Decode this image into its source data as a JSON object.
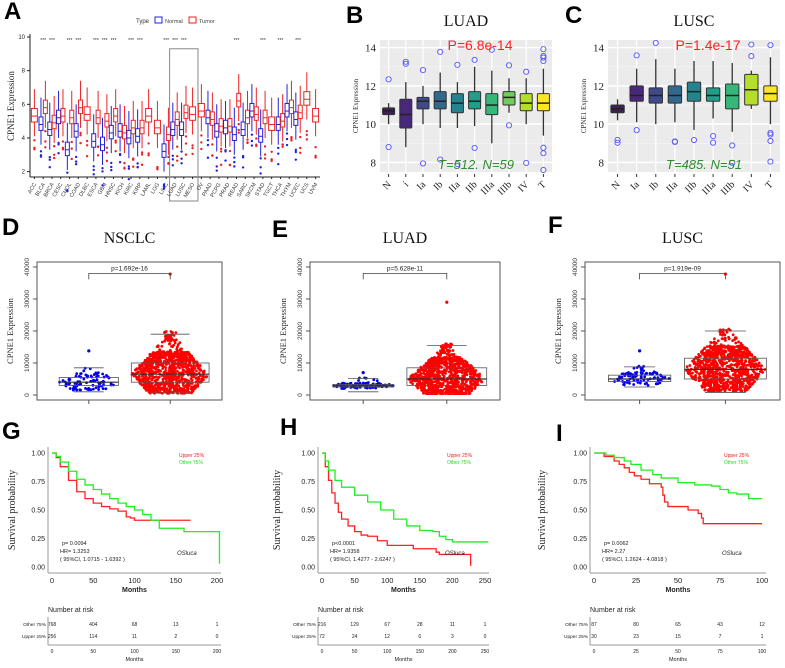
{
  "panel_labels": [
    "A",
    "B",
    "C",
    "D",
    "E",
    "F",
    "G",
    "H",
    "I"
  ],
  "chart_data": [
    {
      "id": "A",
      "type": "box",
      "title": "",
      "ylabel": "CPNE1 Expression",
      "ylim": [
        1.8,
        10
      ],
      "yticks": [
        2,
        4,
        6,
        8,
        10
      ],
      "legend": {
        "title": "Type",
        "entries": [
          {
            "name": "Normal",
            "color": "#2222dd"
          },
          {
            "name": "Tumor",
            "color": "#ee2222"
          }
        ],
        "placement": "top"
      },
      "highlight_box": [
        "LUAD",
        "LUSC",
        "MESO"
      ],
      "categories": [
        "ACC",
        "BLCA",
        "BRCA",
        "CESC",
        "CHOL",
        "COAD",
        "DLBC",
        "ESCA",
        "GBM",
        "HNSC",
        "KICH",
        "KIRC",
        "KIRP",
        "LAML",
        "LGG",
        "LIHC",
        "LUAD",
        "LUSC",
        "MESO",
        "OV",
        "PAAD",
        "PCPG",
        "PRAD",
        "READ",
        "SARC",
        "SKCM",
        "STAD",
        "TGCT",
        "THCA",
        "THYM",
        "UCEC",
        "UCS",
        "UVM"
      ],
      "significance": {
        "BLCA": "***",
        "BRCA": "***",
        "CHOL": "***",
        "COAD": "***",
        "ESCA": "***",
        "GBM": "***",
        "HNSC": "***",
        "KIRC": "***",
        "KIRP": "***",
        "LIHC": "***",
        "LUAD": "***",
        "LUSC": "***",
        "READ": "***",
        "STAD": "***",
        "THCA": "***",
        "UCEC": "***"
      },
      "normal_medians": {
        "BLCA": 4.8,
        "BRCA": 4.5,
        "CESC": 5.2,
        "CHOL": 3.3,
        "COAD": 4.4,
        "ESCA": 3.8,
        "GBM": 3.6,
        "HNSC": 4.3,
        "KICH": 4.4,
        "KIRC": 4.0,
        "KIRP": 4.1,
        "LIHC": 3.2,
        "LUAD": 4.5,
        "LUSC": 4.5,
        "PAAD": 5.2,
        "PCPG": 4.4,
        "PRAD": 4.6,
        "READ": 4.2,
        "SARC": 4.5,
        "SKCM": 5.6,
        "STAD": 4.1,
        "THCA": 4.8,
        "THYM": 5.6,
        "UCEC": 5.1
      },
      "tumor_medians": {
        "ACC": 5.3,
        "BLCA": 5.8,
        "BRCA": 4.9,
        "CESC": 5.3,
        "CHOL": 5.2,
        "COAD": 5.8,
        "DLBC": 5.4,
        "ESCA": 5.2,
        "GBM": 5.0,
        "HNSC": 5.3,
        "KICH": 4.3,
        "KIRC": 4.6,
        "KIRP": 4.6,
        "LAML": 5.3,
        "LGG": 4.6,
        "LIHC": 4.2,
        "LUAD": 5.1,
        "LUSC": 5.5,
        "MESO": 5.4,
        "OV": 5.6,
        "PAAD": 5.1,
        "PCPG": 4.7,
        "PRAD": 4.7,
        "READ": 6.2,
        "SARC": 5.2,
        "SKCM": 5.4,
        "STAD": 5.2,
        "TGCT": 4.8,
        "THCA": 5.0,
        "THYM": 5.8,
        "UCEC": 5.5,
        "UCS": 6.3,
        "UVM": 5.3
      }
    },
    {
      "id": "B",
      "type": "box",
      "title": "LUAD",
      "ylabel": "CPNE1 Expression",
      "ylim": [
        7.5,
        14.4
      ],
      "yticks": [
        8,
        10,
        12,
        14
      ],
      "categories": [
        "N",
        "i",
        "Ia",
        "Ib",
        "IIa",
        "IIb",
        "IIIa",
        "IIIb",
        "IV",
        "T"
      ],
      "medians": [
        10.7,
        10.5,
        11.2,
        11.2,
        11.1,
        11.2,
        11.0,
        11.4,
        11.1,
        11.1
      ],
      "q1": [
        10.5,
        9.8,
        10.8,
        10.8,
        10.6,
        10.8,
        10.5,
        11.0,
        10.7,
        10.7
      ],
      "q3": [
        10.85,
        11.3,
        11.4,
        11.7,
        11.6,
        11.7,
        11.6,
        11.7,
        11.6,
        11.6
      ],
      "whisker_low": [
        10.0,
        8.8,
        10.0,
        9.8,
        9.8,
        9.9,
        9.0,
        10.6,
        10.0,
        9.4
      ],
      "whisker_high": [
        11.1,
        12.2,
        12.0,
        12.7,
        12.2,
        13.0,
        12.8,
        12.4,
        12.4,
        12.9
      ],
      "colors": [
        "#3b1f55",
        "#482878",
        "#3e4a89",
        "#31688e",
        "#26828e",
        "#1f9e89",
        "#35b779",
        "#6ece58",
        "#b5de2b",
        "#fde725"
      ],
      "annotation_p": "P=6.8e-14",
      "annotation_n": "T=512. N=59"
    },
    {
      "id": "C",
      "type": "box",
      "title": "LUSC",
      "ylabel": "CPNE1 Expression",
      "ylim": [
        7.5,
        14.4
      ],
      "yticks": [
        8,
        10,
        12,
        14
      ],
      "categories": [
        "N",
        "Ia",
        "Ib",
        "IIa",
        "IIb",
        "IIIa",
        "IIIb",
        "IV",
        "T"
      ],
      "medians": [
        10.8,
        11.5,
        11.5,
        11.5,
        11.7,
        11.5,
        11.5,
        11.8,
        11.6
      ],
      "q1": [
        10.6,
        11.2,
        11.1,
        11.1,
        11.2,
        11.2,
        10.8,
        11.0,
        11.2
      ],
      "q3": [
        11.0,
        12.0,
        11.9,
        12.0,
        12.2,
        11.9,
        12.1,
        12.6,
        12.0
      ],
      "whisker_low": [
        10.2,
        10.1,
        10.0,
        10.1,
        9.7,
        10.3,
        9.6,
        10.8,
        10.0
      ],
      "whisker_high": [
        11.3,
        12.9,
        13.4,
        12.9,
        13.3,
        13.3,
        13.2,
        12.8,
        13.5
      ],
      "colors": [
        "#3b1f55",
        "#482878",
        "#3e4a89",
        "#31688e",
        "#26828e",
        "#1f9e89",
        "#35b779",
        "#b5de2b",
        "#fde725"
      ],
      "annotation_p": "P=1.4e-17",
      "annotation_n": "T=485. N=51"
    },
    {
      "id": "D",
      "type": "scatter",
      "title": "NSCLC",
      "ylabel": "CPNE1 Expression",
      "ylim": [
        0,
        40000
      ],
      "yticks": [
        0,
        10000,
        20000,
        30000,
        40000
      ],
      "categories": [
        "Normal",
        "Tumor"
      ],
      "p_value": "p=1.692e-16",
      "normal_box": {
        "q1": 3000,
        "median": 4000,
        "q3": 5500,
        "low": 1000,
        "high": 8500
      },
      "tumor_box": {
        "q1": 4000,
        "median": 6500,
        "q3": 10000,
        "low": 600,
        "high": 19000
      },
      "normal_max": 13800,
      "tumor_max": 37800
    },
    {
      "id": "E",
      "type": "scatter",
      "title": "LUAD",
      "ylabel": "CPNE1 Expression",
      "ylim": [
        0,
        40000
      ],
      "yticks": [
        0,
        10000,
        20000,
        30000,
        40000
      ],
      "categories": [
        "Normal",
        "Tumor"
      ],
      "p_value": "p=5.628e-11",
      "normal_box": {
        "q1": 2500,
        "median": 2900,
        "q3": 3300,
        "low": 1000,
        "high": 5200
      },
      "tumor_box": {
        "q1": 3000,
        "median": 5000,
        "q3": 8500,
        "low": 500,
        "high": 15500
      },
      "normal_max": 7000,
      "tumor_max": 29000
    },
    {
      "id": "F",
      "type": "scatter",
      "title": "LUSC",
      "ylabel": "CPNE1 Expression",
      "ylim": [
        0,
        40000
      ],
      "yticks": [
        0,
        10000,
        20000,
        30000,
        40000
      ],
      "categories": [
        "Normal",
        "Tumor"
      ],
      "p_value": "p=1.919e-09",
      "normal_box": {
        "q1": 4200,
        "median": 5000,
        "q3": 6200,
        "low": 2500,
        "high": 8800
      },
      "tumor_box": {
        "q1": 5000,
        "median": 8000,
        "q3": 11500,
        "low": 800,
        "high": 20000
      },
      "normal_max": 13800,
      "tumor_max": 37800
    },
    {
      "id": "G",
      "type": "line",
      "ylabel": "Survival probability",
      "xlabel": "Months",
      "xlim": [
        0,
        200
      ],
      "xticks": [
        0,
        50,
        100,
        150,
        200
      ],
      "ylim": [
        0,
        1
      ],
      "yticks": [
        "0.00",
        "0.25",
        "0.50",
        "0.75",
        "1.00"
      ],
      "legend": [
        {
          "name": "Upper 25%",
          "color": "#ee2222"
        },
        {
          "name": "Other  75%",
          "color": "#22dd22"
        }
      ],
      "legend_placement": "top-right",
      "stats": [
        "p= 0.0094",
        "HR= 1.3253",
        "( 95%CI, 1.0715 - 1.6392 )"
      ],
      "tag": "OSluca",
      "series": [
        {
          "name": "Upper 25%",
          "x": [
            0,
            5,
            10,
            20,
            30,
            40,
            50,
            60,
            70,
            80,
            90,
            95,
            100,
            120,
            140,
            168
          ],
          "y": [
            1,
            0.96,
            0.88,
            0.76,
            0.66,
            0.6,
            0.56,
            0.53,
            0.51,
            0.49,
            0.44,
            0.43,
            0.41,
            0.41,
            0.41,
            0.41
          ]
        },
        {
          "name": "Other 75%",
          "x": [
            0,
            5,
            10,
            20,
            30,
            40,
            50,
            60,
            70,
            80,
            90,
            100,
            110,
            120,
            130,
            150,
            160,
            170,
            203,
            203
          ],
          "y": [
            1,
            0.97,
            0.92,
            0.84,
            0.77,
            0.72,
            0.68,
            0.64,
            0.6,
            0.56,
            0.53,
            0.5,
            0.46,
            0.41,
            0.34,
            0.34,
            0.31,
            0.31,
            0.31,
            0.03
          ]
        }
      ],
      "risk_table": {
        "title": "Number at risk",
        "xlabel": "Months",
        "rows": [
          {
            "label": "Other  75%",
            "values": [
              768,
              404,
              68,
              13,
              1
            ]
          },
          {
            "label": "Upper 25%",
            "values": [
              256,
              114,
              11,
              2,
              0
            ]
          }
        ]
      }
    },
    {
      "id": "H",
      "type": "line",
      "ylabel": "Survival probability",
      "xlabel": "Months",
      "xlim": [
        0,
        250
      ],
      "xticks": [
        0,
        50,
        100,
        150,
        200,
        250
      ],
      "ylim": [
        0,
        1
      ],
      "yticks": [
        "0.00",
        "0.25",
        "0.50",
        "0.75",
        "1.00"
      ],
      "legend": [
        {
          "name": "Upper 25%",
          "color": "#ee2222"
        },
        {
          "name": "Other  75%",
          "color": "#22dd22"
        }
      ],
      "legend_placement": "top-right",
      "stats": [
        "p<0.0001",
        "HR= 1.9358",
        "( 95%CI, 1.4277 - 2.6247 )"
      ],
      "tag": "OSluca",
      "series": [
        {
          "name": "Upper 25%",
          "x": [
            0,
            5,
            10,
            15,
            20,
            25,
            30,
            40,
            50,
            60,
            70,
            85,
            100,
            140,
            175,
            180,
            225,
            228
          ],
          "y": [
            1,
            0.88,
            0.76,
            0.65,
            0.56,
            0.48,
            0.42,
            0.36,
            0.31,
            0.28,
            0.27,
            0.23,
            0.19,
            0.16,
            0.13,
            0.11,
            0.11,
            0.01
          ]
        },
        {
          "name": "Other 75%",
          "x": [
            0,
            5,
            10,
            20,
            30,
            50,
            70,
            90,
            110,
            130,
            150,
            170,
            180,
            190,
            200,
            255
          ],
          "y": [
            1,
            0.93,
            0.85,
            0.76,
            0.7,
            0.63,
            0.57,
            0.5,
            0.42,
            0.36,
            0.32,
            0.31,
            0.27,
            0.24,
            0.22,
            0.22
          ]
        }
      ],
      "risk_table": {
        "title": "Number at risk",
        "xlabel": "Months",
        "rows": [
          {
            "label": "Other  75%",
            "values": [
              216,
              129,
              67,
              28,
              11,
              1
            ]
          },
          {
            "label": "Upper 25%",
            "values": [
              72,
              24,
              12,
              6,
              3,
              0
            ]
          }
        ]
      }
    },
    {
      "id": "I",
      "type": "line",
      "ylabel": "Survival probability",
      "xlabel": "Months",
      "xlim": [
        0,
        100
      ],
      "xticks": [
        0,
        25,
        50,
        75,
        100
      ],
      "ylim": [
        0,
        1
      ],
      "yticks": [
        "0.00",
        "0.25",
        "0.50",
        "0.75",
        "1.00"
      ],
      "legend": [
        {
          "name": "Upper 25%",
          "color": "#ee2222"
        },
        {
          "name": "Other  75%",
          "color": "#22dd22"
        }
      ],
      "legend_placement": "top-right",
      "stats": [
        "p= 0.0062",
        "HR= 2.27",
        "( 95%CI, 1.2624 - 4.0818 )"
      ],
      "tag": "OSluca",
      "series": [
        {
          "name": "Upper 25%",
          "x": [
            0,
            6,
            12,
            15,
            18,
            21,
            24,
            28,
            33,
            40,
            41,
            42,
            44,
            56,
            62,
            64,
            65,
            100
          ],
          "y": [
            1,
            0.97,
            0.93,
            0.9,
            0.87,
            0.83,
            0.8,
            0.77,
            0.73,
            0.7,
            0.63,
            0.57,
            0.53,
            0.5,
            0.47,
            0.43,
            0.38,
            0.38
          ]
        },
        {
          "name": "Other 75%",
          "x": [
            0,
            7,
            12,
            18,
            22,
            28,
            35,
            40,
            50,
            60,
            70,
            75,
            80,
            85,
            92,
            100
          ],
          "y": [
            1,
            0.98,
            0.96,
            0.93,
            0.9,
            0.85,
            0.81,
            0.78,
            0.74,
            0.72,
            0.71,
            0.68,
            0.65,
            0.64,
            0.6,
            0.6
          ]
        }
      ],
      "risk_table": {
        "title": "Number at risk",
        "xlabel": "Months",
        "rows": [
          {
            "label": "Other  75%",
            "values": [
              87,
              80,
              65,
              43,
              12
            ]
          },
          {
            "label": "Upper 25%",
            "values": [
              30,
              23,
              15,
              7,
              1
            ]
          }
        ]
      }
    }
  ]
}
